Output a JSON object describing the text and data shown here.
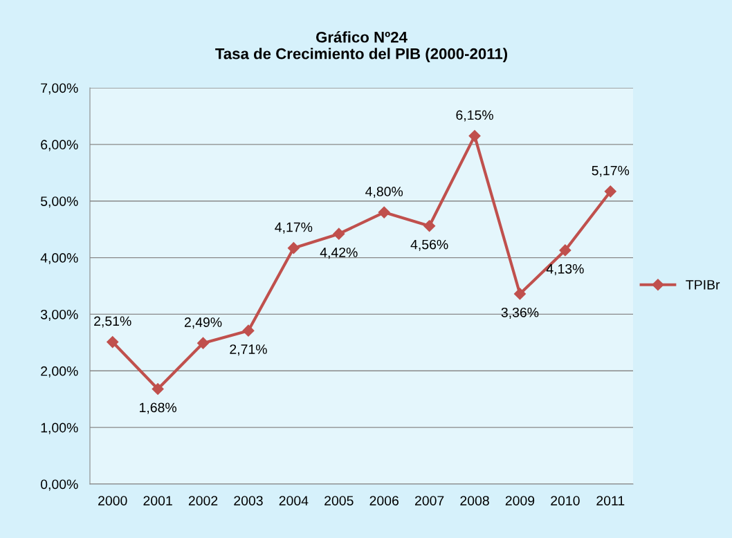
{
  "chart_data": {
    "type": "line",
    "title": "Gráfico Nº24\nTasa de Crecimiento del PIB (2000-2011)",
    "categories": [
      "2000",
      "2001",
      "2002",
      "2003",
      "2004",
      "2005",
      "2006",
      "2007",
      "2008",
      "2009",
      "2010",
      "2011"
    ],
    "series": [
      {
        "name": "TPIBr",
        "color": "#c0504d",
        "values": [
          2.51,
          1.68,
          2.49,
          2.71,
          4.17,
          4.42,
          4.8,
          4.56,
          6.15,
          3.36,
          4.13,
          5.17
        ],
        "value_labels": [
          "2,51%",
          "1,68%",
          "2,49%",
          "2,71%",
          "4,17%",
          "4,42%",
          "4,80%",
          "4,56%",
          "6,15%",
          "3,36%",
          "4,13%",
          "5,17%"
        ]
      }
    ],
    "ylim": [
      0,
      7
    ],
    "yticks": [
      {
        "value": 0,
        "label": "0,00%"
      },
      {
        "value": 1,
        "label": "1,00%"
      },
      {
        "value": 2,
        "label": "2,00%"
      },
      {
        "value": 3,
        "label": "3,00%"
      },
      {
        "value": 4,
        "label": "4,00%"
      },
      {
        "value": 5,
        "label": "5,00%"
      },
      {
        "value": 6,
        "label": "6,00%"
      },
      {
        "value": 7,
        "label": "7,00%"
      }
    ],
    "grid": "y",
    "legend": "right",
    "marker": "diamond",
    "line_style": "solid"
  }
}
